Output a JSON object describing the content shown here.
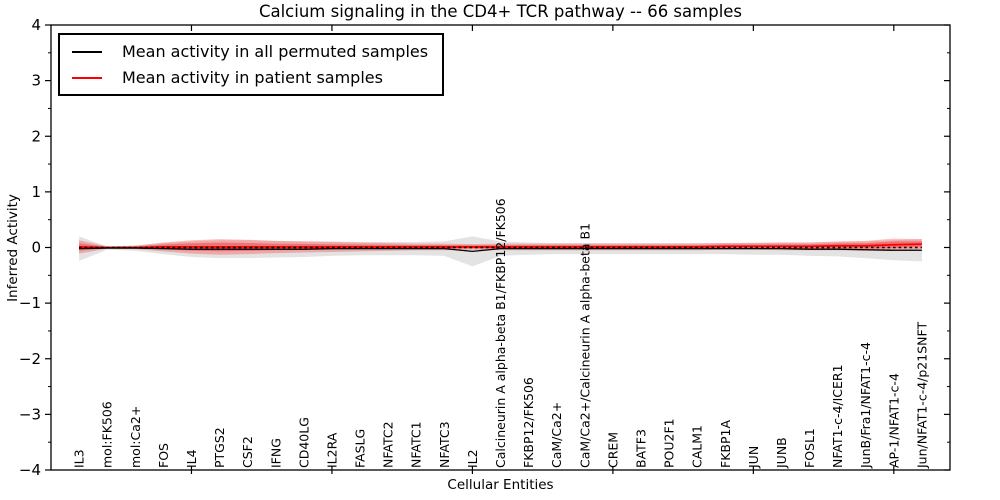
{
  "title": "Calcium signaling in the CD4+ TCR pathway -- 66 samples",
  "axes": {
    "x_label": "Cellular Entities",
    "y_label": "Inferred Activity"
  },
  "legend": {
    "entries": [
      {
        "label": "Mean activity in all permuted samples",
        "color": "#000000"
      },
      {
        "label": "Mean activity in patient samples",
        "color": "#ff0000"
      }
    ]
  },
  "colors": {
    "background": "#ffffff",
    "frame": "#000000",
    "permuted_line": "#000000",
    "patient_line": "#ff0000",
    "zero_line": "#000000",
    "permuted_band": "rgba(0,0,0,0.11)",
    "patient_band": "rgba(255,0,0,0.25)",
    "patient_band_inner": "rgba(255,0,0,0.33)"
  },
  "chart_data": {
    "type": "line",
    "title": "Calcium signaling in the CD4+ TCR pathway -- 66 samples",
    "xlabel": "Cellular Entities",
    "ylabel": "Inferred Activity",
    "ylim": [
      -4,
      4
    ],
    "yticks": [
      4,
      3,
      2,
      1,
      0,
      -1,
      -2,
      -3,
      -4
    ],
    "y_minor_step": 0.5,
    "x_major_tick_positions": [
      5,
      10,
      15,
      20,
      25,
      30
    ],
    "grid": false,
    "legend_position": "upper left",
    "zero_line": {
      "value": 0,
      "style": "dotted",
      "color": "#000000"
    },
    "categories": [
      "IL3",
      "mol:FK506",
      "mol:Ca2+",
      "FOS",
      "IL4",
      "PTGS2",
      "CSF2",
      "IFNG",
      "CD40LG",
      "IL2RA",
      "FASLG",
      "NFATC2",
      "NFATC1",
      "NFATC3",
      "IL2",
      "Calcineurin A alpha-beta B1/FKBP12/FK506",
      "FKBP12/FK506",
      "CaM/Ca2+",
      "CaM/Ca2+/Calcineurin A alpha-beta B1",
      "CREM",
      "BATF3",
      "POU2F1",
      "CALM1",
      "FKBP1A",
      "JUN",
      "JUNB",
      "FOSL1",
      "NFAT1-c-4/ICER1",
      "JunB/Fra1/NFAT1-c-4",
      "AP-1/NFAT1-c-4",
      "Jun/NFAT1-c-4/p21SNFT"
    ],
    "series": [
      {
        "name": "Mean activity in all permuted samples",
        "style": "solid",
        "color": "#000000",
        "mean": [
          -0.02,
          -0.01,
          -0.01,
          -0.02,
          -0.03,
          -0.03,
          -0.03,
          -0.03,
          -0.03,
          -0.02,
          -0.02,
          -0.02,
          -0.02,
          -0.02,
          -0.07,
          -0.02,
          -0.02,
          -0.02,
          -0.02,
          -0.02,
          -0.02,
          -0.02,
          -0.02,
          -0.02,
          -0.02,
          -0.02,
          -0.03,
          -0.03,
          -0.04,
          -0.05,
          -0.05
        ],
        "std": [
          0.22,
          0.03,
          0.05,
          0.1,
          0.14,
          0.16,
          0.16,
          0.15,
          0.14,
          0.13,
          0.12,
          0.12,
          0.12,
          0.13,
          0.27,
          0.13,
          0.11,
          0.1,
          0.1,
          0.1,
          0.1,
          0.1,
          0.1,
          0.1,
          0.11,
          0.11,
          0.12,
          0.13,
          0.15,
          0.18,
          0.2
        ]
      },
      {
        "name": "Mean activity in patient samples",
        "style": "solid",
        "color": "#ff0000",
        "mean": [
          0.01,
          0.0,
          0.0,
          0.01,
          0.01,
          0.01,
          0.01,
          0.01,
          0.01,
          0.01,
          0.01,
          0.01,
          0.01,
          0.01,
          0.01,
          0.01,
          0.01,
          0.01,
          0.01,
          0.01,
          0.01,
          0.01,
          0.01,
          0.02,
          0.02,
          0.02,
          0.02,
          0.03,
          0.03,
          0.05,
          0.06
        ],
        "std": [
          0.12,
          0.02,
          0.03,
          0.08,
          0.12,
          0.14,
          0.13,
          0.11,
          0.1,
          0.09,
          0.08,
          0.07,
          0.06,
          0.06,
          0.05,
          0.06,
          0.06,
          0.06,
          0.06,
          0.06,
          0.06,
          0.06,
          0.06,
          0.06,
          0.06,
          0.07,
          0.07,
          0.08,
          0.09,
          0.11,
          0.09
        ]
      }
    ]
  }
}
